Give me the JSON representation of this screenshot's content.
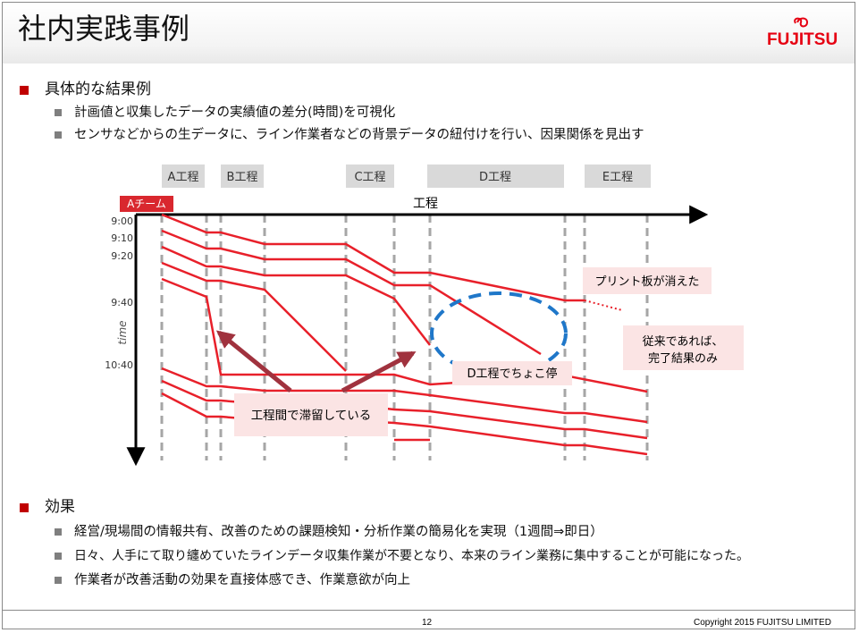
{
  "title": "社内実践事例",
  "logo": {
    "text": "FUJITSU",
    "color": "#e60012"
  },
  "section1": {
    "heading": "具体的な結果例",
    "bullets": [
      "計画値と収集したデータの実績値の差分(時間)を可視化",
      "センサなどからの生データに、ライン作業者などの背景データの紐付けを行い、因果関係を見出す"
    ]
  },
  "diagram": {
    "processes": [
      "A工程",
      "B工程",
      "C工程",
      "D工程",
      "E工程"
    ],
    "team_label": "Aチーム",
    "x_axis_label": "工程",
    "y_axis_label": "time",
    "time_ticks": [
      "9:00",
      "9:10",
      "9:20",
      "9:40",
      "10:40"
    ],
    "callouts": {
      "print_board": "プリント板が消えた",
      "conventional_line1": "従来であれば、",
      "conventional_line2": "完了結果のみ",
      "short_stop": "D工程でちょこ停",
      "stagnation": "工程間で滞留している"
    },
    "colors": {
      "line": "#e8202a",
      "arrow": "#a0323e",
      "ellipse": "#1f77c9",
      "callout_bg": "#fbe4e4",
      "process_bg": "#d9d9d9"
    }
  },
  "section2": {
    "heading": "効果",
    "bullets": [
      "経営/現場間の情報共有、改善のための課題検知・分析作業の簡易化を実現（1週間⇒即日）",
      "日々、人手にて取り纏めていたラインデータ収集作業が不要となり、本来のライン業務に集中することが可能になった。",
      "作業者が改善活動の効果を直接体感でき、作業意欲が向上"
    ]
  },
  "footer": {
    "page": "12",
    "copyright": "Copyright 2015 FUJITSU LIMITED"
  }
}
